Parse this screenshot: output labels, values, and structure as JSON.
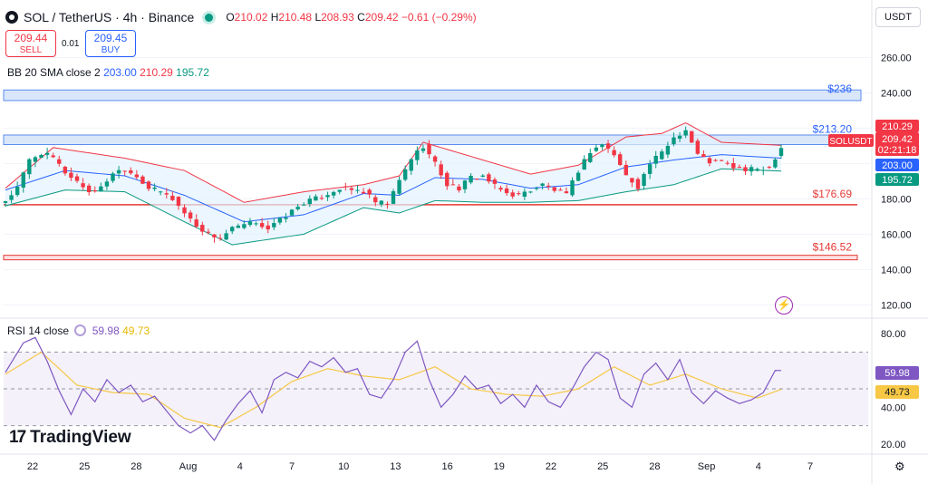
{
  "header": {
    "title": "SOL / TetherUS · 4h · Binance",
    "open_label": "O",
    "open": "210.02",
    "high_label": "H",
    "high": "210.48",
    "low_label": "L",
    "low": "208.93",
    "close_label": "C",
    "close": "209.42",
    "change": "−0.61 (−0.29%)"
  },
  "trade": {
    "sell_price": "209.44",
    "sell_label": "SELL",
    "spread": "0.01",
    "buy_price": "209.45",
    "buy_label": "BUY"
  },
  "indicators": {
    "bb_label": "BB 20 SMA close 2",
    "bb_basis": "203.00",
    "bb_upper": "210.29",
    "bb_lower": "195.72",
    "rsi_label": "RSI 14 close",
    "rsi_value": "59.98",
    "rsi_ma": "49.73"
  },
  "currency_button": "USDT",
  "brand": "TradingView",
  "icons": [
    "symbol-logo-icon",
    "market-status-icon",
    "rsi-settings-icon",
    "lightning-icon",
    "settings-gear-icon",
    "tradingview-logo-icon"
  ],
  "colors": {
    "up": "#089981",
    "down": "#f23645",
    "bb_basis": "#2962ff",
    "bb_upper": "#f23645",
    "bb_lower": "#089981",
    "rsi": "#7e57c2",
    "rsi_ma": "#f7c846",
    "zone_fill": "#bbd3f8",
    "line_red": "#e53935"
  },
  "chart_data": [
    {
      "type": "candlestick",
      "symbol": "SOLUSDT",
      "price_axis": {
        "ticks": [
          "260.00",
          "240.00",
          "220.00",
          "200.00",
          "180.00",
          "160.00",
          "140.00",
          "120.00"
        ],
        "ylim": [
          113,
          272
        ]
      },
      "x_axis": {
        "ticks": [
          "22",
          "25",
          "28",
          "Aug",
          "4",
          "7",
          "10",
          "13",
          "16",
          "19",
          "22",
          "25",
          "28",
          "Sep",
          "4",
          "7"
        ]
      },
      "price_labels": [
        {
          "symbol": "SOLUSDT",
          "value": "209.42",
          "countdown": "02:21:18",
          "color": "#f23645"
        },
        {
          "value": "210.29",
          "color": "#f23645"
        },
        {
          "value": "203.00",
          "color": "#2962ff"
        },
        {
          "value": "195.72",
          "color": "#089981"
        }
      ],
      "annotations": [
        {
          "text": "$236",
          "y": 236,
          "color": "#2962ff"
        },
        {
          "text": "$213.20",
          "y": 213.2,
          "color": "#2962ff"
        },
        {
          "text": "$176.69",
          "y": 176.69,
          "color": "#e53935"
        },
        {
          "text": "$146.52",
          "y": 146.52,
          "color": "#e53935"
        }
      ],
      "zones": [
        {
          "from": 235.6,
          "to": 241.6
        },
        {
          "from": 210.7,
          "to": 216.1
        }
      ],
      "hlines": [
        176.69,
        146.52
      ],
      "close_anchors": [
        [
          0,
          179
        ],
        [
          2,
          186
        ],
        [
          4,
          202
        ],
        [
          6,
          206
        ],
        [
          8,
          203
        ],
        [
          10,
          195
        ],
        [
          12,
          190
        ],
        [
          14,
          184
        ],
        [
          16,
          186
        ],
        [
          18,
          195
        ],
        [
          20,
          197
        ],
        [
          22,
          193
        ],
        [
          24,
          186
        ],
        [
          26,
          184
        ],
        [
          28,
          180
        ],
        [
          30,
          172
        ],
        [
          32,
          165
        ],
        [
          34,
          160
        ],
        [
          36,
          158
        ],
        [
          38,
          163
        ],
        [
          40,
          165
        ],
        [
          42,
          167
        ],
        [
          44,
          163
        ],
        [
          46,
          168
        ],
        [
          48,
          173
        ],
        [
          50,
          178
        ],
        [
          52,
          180
        ],
        [
          54,
          183
        ],
        [
          56,
          186
        ],
        [
          58,
          185
        ],
        [
          60,
          184
        ],
        [
          62,
          178
        ],
        [
          64,
          177
        ],
        [
          66,
          190
        ],
        [
          68,
          203
        ],
        [
          70,
          210
        ],
        [
          72,
          200
        ],
        [
          74,
          188
        ],
        [
          76,
          186
        ],
        [
          78,
          192
        ],
        [
          80,
          193
        ],
        [
          82,
          187
        ],
        [
          84,
          183
        ],
        [
          86,
          182
        ],
        [
          88,
          185
        ],
        [
          90,
          188
        ],
        [
          92,
          185
        ],
        [
          94,
          182
        ],
        [
          96,
          196
        ],
        [
          98,
          207
        ],
        [
          100,
          211
        ],
        [
          102,
          205
        ],
        [
          104,
          193
        ],
        [
          106,
          187
        ],
        [
          108,
          200
        ],
        [
          110,
          206
        ],
        [
          112,
          215
        ],
        [
          114,
          219
        ],
        [
          116,
          205
        ],
        [
          118,
          201
        ],
        [
          120,
          201
        ],
        [
          122,
          198
        ],
        [
          124,
          196
        ],
        [
          126,
          197
        ],
        [
          128,
          198
        ],
        [
          130,
          209.42
        ]
      ],
      "bollinger": {
        "basis": [
          [
            0,
            185
          ],
          [
            10,
            196
          ],
          [
            20,
            193
          ],
          [
            30,
            182
          ],
          [
            40,
            167
          ],
          [
            50,
            171
          ],
          [
            60,
            183
          ],
          [
            66,
            182
          ],
          [
            72,
            192
          ],
          [
            80,
            191
          ],
          [
            88,
            186
          ],
          [
            96,
            188
          ],
          [
            104,
            198
          ],
          [
            112,
            202
          ],
          [
            120,
            205
          ],
          [
            130,
            203
          ]
        ],
        "upper": [
          [
            0,
            186
          ],
          [
            8,
            209
          ],
          [
            20,
            203
          ],
          [
            30,
            196
          ],
          [
            40,
            178
          ],
          [
            50,
            184
          ],
          [
            60,
            188
          ],
          [
            66,
            193
          ],
          [
            70,
            212
          ],
          [
            80,
            202
          ],
          [
            88,
            194
          ],
          [
            96,
            199
          ],
          [
            104,
            215
          ],
          [
            110,
            217
          ],
          [
            114,
            223
          ],
          [
            120,
            212
          ],
          [
            130,
            210.29
          ]
        ],
        "lower": [
          [
            0,
            176
          ],
          [
            10,
            185
          ],
          [
            20,
            184
          ],
          [
            30,
            167
          ],
          [
            38,
            154
          ],
          [
            50,
            160
          ],
          [
            60,
            175
          ],
          [
            66,
            172
          ],
          [
            72,
            179
          ],
          [
            80,
            178
          ],
          [
            88,
            178
          ],
          [
            96,
            179
          ],
          [
            104,
            184
          ],
          [
            112,
            188
          ],
          [
            120,
            197
          ],
          [
            130,
            195.72
          ]
        ]
      }
    },
    {
      "type": "line",
      "name": "RSI 14 close",
      "ylim": [
        15,
        88
      ],
      "ticks": [
        "80.00",
        "40.00",
        "20.00"
      ],
      "bands": [
        70,
        50,
        30
      ],
      "series": [
        {
          "name": "RSI",
          "values": [
            [
              0,
              59
            ],
            [
              3,
              75
            ],
            [
              5,
              78
            ],
            [
              7,
              65
            ],
            [
              9,
              49
            ],
            [
              11,
              36
            ],
            [
              13,
              50
            ],
            [
              15,
              43
            ],
            [
              17,
              55
            ],
            [
              19,
              48
            ],
            [
              21,
              52
            ],
            [
              23,
              43
            ],
            [
              25,
              46
            ],
            [
              27,
              38
            ],
            [
              29,
              30
            ],
            [
              31,
              26
            ],
            [
              33,
              30
            ],
            [
              35,
              22
            ],
            [
              37,
              33
            ],
            [
              39,
              42
            ],
            [
              41,
              49
            ],
            [
              43,
              37
            ],
            [
              45,
              55
            ],
            [
              47,
              59
            ],
            [
              49,
              56
            ],
            [
              51,
              65
            ],
            [
              53,
              62
            ],
            [
              55,
              67
            ],
            [
              57,
              59
            ],
            [
              59,
              61
            ],
            [
              61,
              47
            ],
            [
              63,
              45
            ],
            [
              65,
              55
            ],
            [
              67,
              70
            ],
            [
              69,
              76
            ],
            [
              71,
              55
            ],
            [
              73,
              40
            ],
            [
              75,
              47
            ],
            [
              77,
              57
            ],
            [
              79,
              50
            ],
            [
              81,
              52
            ],
            [
              83,
              42
            ],
            [
              85,
              47
            ],
            [
              87,
              40
            ],
            [
              89,
              52
            ],
            [
              91,
              43
            ],
            [
              93,
              40
            ],
            [
              95,
              50
            ],
            [
              97,
              62
            ],
            [
              99,
              70
            ],
            [
              101,
              66
            ],
            [
              103,
              45
            ],
            [
              105,
              40
            ],
            [
              107,
              58
            ],
            [
              109,
              64
            ],
            [
              111,
              55
            ],
            [
              113,
              66
            ],
            [
              115,
              48
            ],
            [
              117,
              42
            ],
            [
              119,
              49
            ],
            [
              121,
              45
            ],
            [
              123,
              42
            ],
            [
              125,
              44
            ],
            [
              127,
              48
            ],
            [
              129,
              60
            ],
            [
              130,
              59.98
            ]
          ]
        },
        {
          "name": "RSI-based MA",
          "values": [
            [
              0,
              58
            ],
            [
              6,
              70
            ],
            [
              12,
              52
            ],
            [
              18,
              48
            ],
            [
              24,
              47
            ],
            [
              30,
              34
            ],
            [
              36,
              29
            ],
            [
              42,
              40
            ],
            [
              48,
              54
            ],
            [
              54,
              61
            ],
            [
              60,
              57
            ],
            [
              66,
              55
            ],
            [
              72,
              62
            ],
            [
              78,
              50
            ],
            [
              84,
              47
            ],
            [
              90,
              46
            ],
            [
              96,
              50
            ],
            [
              102,
              62
            ],
            [
              108,
              52
            ],
            [
              114,
              58
            ],
            [
              120,
              50
            ],
            [
              126,
              45
            ],
            [
              130,
              49.73
            ]
          ]
        }
      ],
      "rsi_ma_anchor_note": ""
    }
  ]
}
